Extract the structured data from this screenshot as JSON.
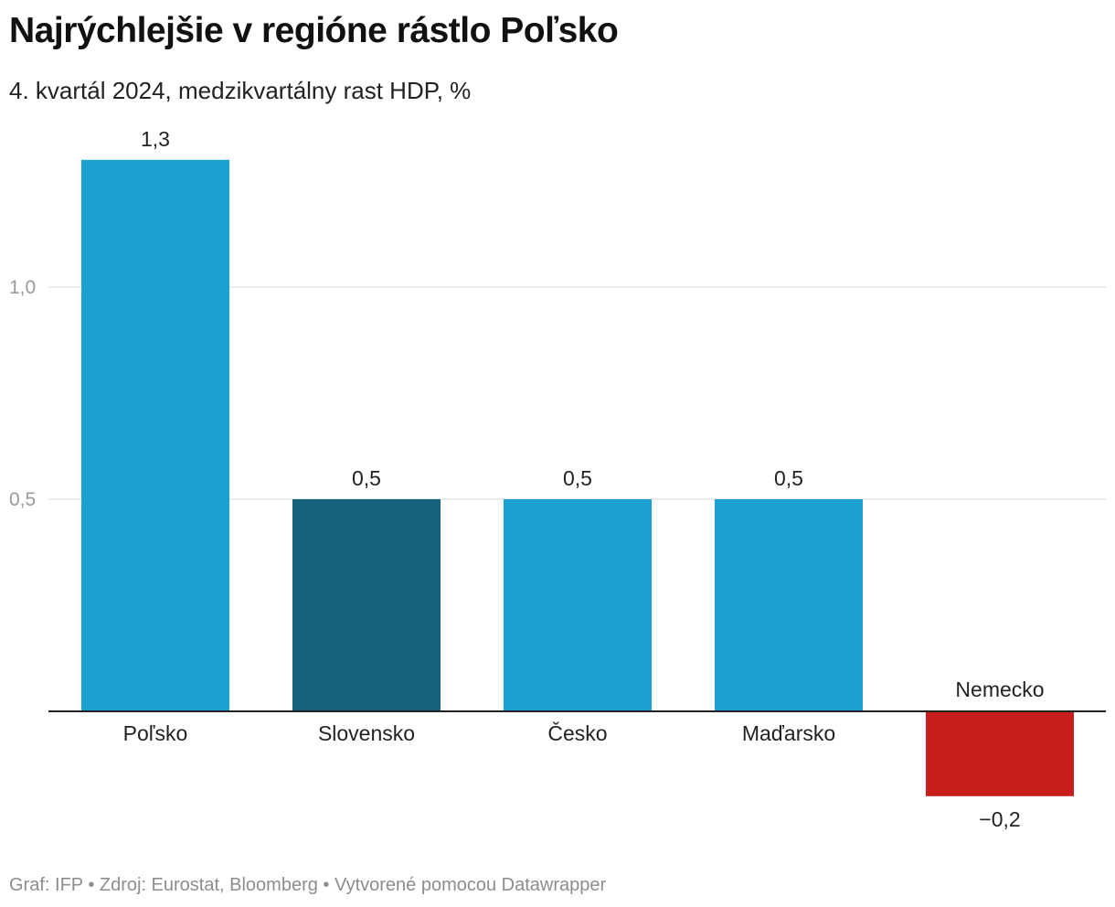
{
  "chart_data": {
    "type": "bar",
    "title": "Najrýchlejšie v regióne rástlo Poľsko",
    "subtitle": "4. kvartál 2024, medzikvartálny rast HDP, %",
    "categories": [
      "Poľsko",
      "Slovensko",
      "Česko",
      "Maďarsko",
      "Nemecko"
    ],
    "values": [
      1.3,
      0.5,
      0.5,
      0.5,
      -0.2
    ],
    "value_labels": [
      "1,3",
      "0,5",
      "0,5",
      "0,5",
      "−0,2"
    ],
    "colors": [
      "#1aa1cf",
      "#16617c",
      "#1aa1cf",
      "#1aa1cf",
      "#c81e1e"
    ],
    "yticks": [
      0.5,
      1.0
    ],
    "ytick_labels": [
      "0,5",
      "1,0"
    ],
    "ylim": [
      -0.2,
      1.3
    ],
    "grid": true,
    "xlabel": "",
    "ylabel": ""
  },
  "footer": "Graf: IFP • Zdroj: Eurostat, Bloomberg • Vytvorené pomocou Datawrapper"
}
